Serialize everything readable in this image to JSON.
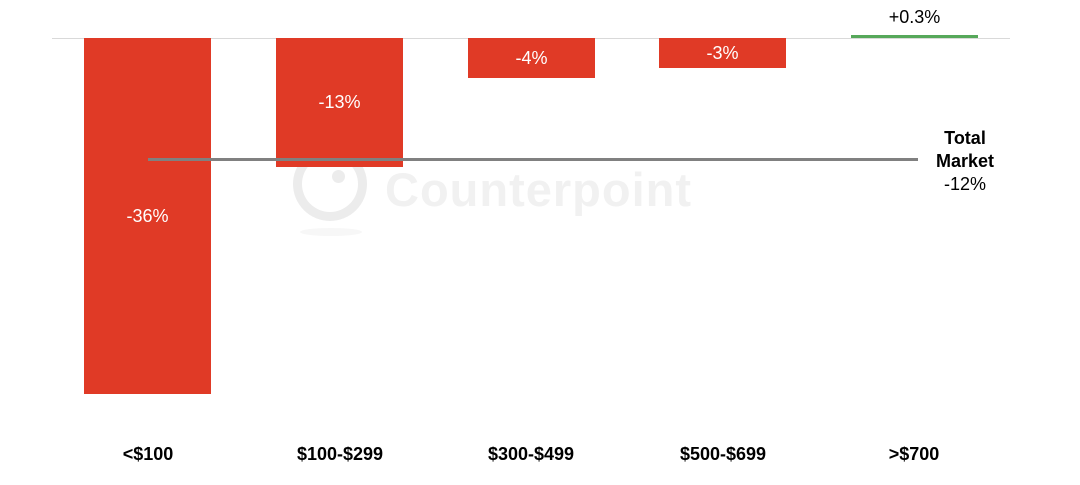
{
  "chart_data": {
    "type": "bar",
    "categories": [
      "<$100",
      "$100-$299",
      "$300-$499",
      "$500-$699",
      ">$700"
    ],
    "values": [
      -36,
      -13,
      -4,
      -3,
      0.3
    ],
    "value_labels": [
      "-36%",
      "-13%",
      "-4%",
      "-3%",
      "+0.3%"
    ],
    "reference_line": {
      "value": -12,
      "label_line1": "Total",
      "label_line2": "Market",
      "label_value": "-12%"
    },
    "colors": {
      "negative_bar": "#e03a26",
      "positive_bar": "#56a85a",
      "reference_line": "#808080",
      "axis_line": "#d9d9d9",
      "bar_label": "#ffffff",
      "text": "#000000"
    },
    "xlabel": "",
    "ylabel": "",
    "grid": false,
    "legend": false,
    "baseline": 0
  },
  "watermark": {
    "text": "Counterpoint"
  }
}
